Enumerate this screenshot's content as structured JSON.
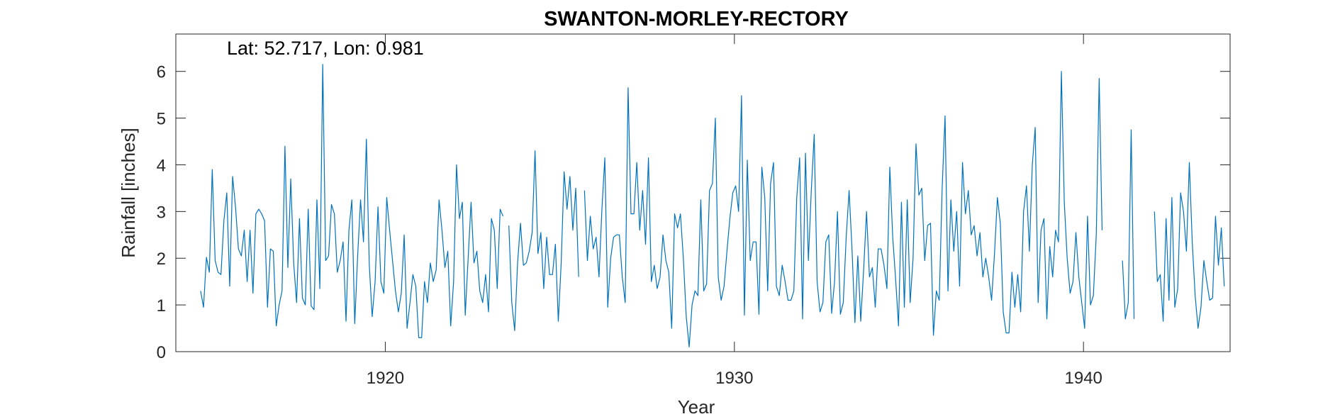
{
  "chart_data": {
    "type": "line",
    "title": "SWANTON-MORLEY-RECTORY",
    "annotation": "Lat: 52.717, Lon: 0.981",
    "xlabel": "Year",
    "ylabel": "Rainfall [inches]",
    "xlim": [
      1914,
      1944.2
    ],
    "ylim": [
      0,
      6.8
    ],
    "xticks": [
      1920,
      1930,
      1940
    ],
    "yticks": [
      0,
      1,
      2,
      3,
      4,
      5,
      6
    ],
    "grid": false,
    "line_color": "#0072BD",
    "series": [
      {
        "start_year": 1914.71,
        "step_years": 0.0833,
        "values": [
          1.3,
          0.95,
          2.02,
          1.7,
          3.9,
          1.95,
          1.7,
          1.65,
          2.8,
          3.4,
          1.4,
          3.75,
          3.1,
          2.2,
          2.05,
          2.6,
          1.5,
          2.6,
          1.25,
          2.95,
          3.05,
          2.95,
          2.8,
          0.95,
          2.2,
          2.15,
          0.55,
          1.0,
          1.3,
          4.4,
          1.8,
          3.7,
          1.9,
          1.05,
          2.85,
          1.15,
          1.0,
          3.05,
          0.98,
          0.9,
          3.25,
          1.35,
          6.15,
          1.95,
          2.05,
          3.15,
          2.95,
          1.7,
          1.95,
          2.35,
          0.65,
          2.6,
          3.25,
          0.6,
          2.05,
          3.25,
          2.35,
          4.55,
          1.85,
          0.75,
          1.5,
          3.1,
          1.5,
          1.25,
          3.3,
          2.6,
          1.95,
          1.3,
          0.85,
          1.25,
          2.5,
          0.5,
          1.05,
          1.65,
          1.4,
          0.3,
          0.3,
          1.5,
          1.05,
          1.9,
          1.5,
          1.75,
          3.25,
          2.6,
          1.8,
          2.15,
          0.55,
          1.5,
          4.0,
          2.85,
          3.2,
          0.78,
          2.0,
          3.2,
          1.9,
          2.15,
          1.3,
          1.05,
          1.65,
          0.85,
          2.85,
          2.6,
          1.35,
          3.05,
          2.9,
          null,
          2.7,
          1.05,
          0.45,
          1.9,
          2.75,
          1.85,
          1.9,
          2.15,
          2.55,
          4.3,
          2.1,
          2.55,
          1.35,
          2.45,
          1.65,
          1.65,
          2.3,
          0.65,
          1.9,
          3.85,
          3.05,
          3.75,
          2.6,
          3.5,
          1.6,
          null,
          3.45,
          1.95,
          2.9,
          2.2,
          2.45,
          1.6,
          3.05,
          4.15,
          0.95,
          2.0,
          2.45,
          2.5,
          2.5,
          1.6,
          1.05,
          5.65,
          2.95,
          2.95,
          4.05,
          2.6,
          3.45,
          2.3,
          4.15,
          1.5,
          1.85,
          1.35,
          1.6,
          2.5,
          1.95,
          1.7,
          0.5,
          2.95,
          2.65,
          2.95,
          2.0,
          0.75,
          0.1,
          1.0,
          1.3,
          1.2,
          3.25,
          1.3,
          1.45,
          3.45,
          3.6,
          5.0,
          1.6,
          1.1,
          1.4,
          2.15,
          2.85,
          3.4,
          3.55,
          3.0,
          5.48,
          0.78,
          4.1,
          1.95,
          2.35,
          2.35,
          0.8,
          3.95,
          3.3,
          1.3,
          3.6,
          4.05,
          1.4,
          1.2,
          1.85,
          1.5,
          1.1,
          1.1,
          1.3,
          3.3,
          4.15,
          0.7,
          4.25,
          1.95,
          3.45,
          4.65,
          1.5,
          0.85,
          1.05,
          2.35,
          2.5,
          0.82,
          1.5,
          3.0,
          0.8,
          1.05,
          2.45,
          3.45,
          2.2,
          0.62,
          2.05,
          0.65,
          1.75,
          3.0,
          1.6,
          1.8,
          0.95,
          2.2,
          2.2,
          1.85,
          1.35,
          3.95,
          2.45,
          1.55,
          0.55,
          3.2,
          0.95,
          3.25,
          1.05,
          2.0,
          4.45,
          3.35,
          3.5,
          1.95,
          2.7,
          2.75,
          0.35,
          1.3,
          1.1,
          3.5,
          5.05,
          1.3,
          3.25,
          2.15,
          3.0,
          1.4,
          4.05,
          2.95,
          3.45,
          2.5,
          2.7,
          2.05,
          2.55,
          1.6,
          2.0,
          1.6,
          1.1,
          2.1,
          3.3,
          2.75,
          0.85,
          0.4,
          0.4,
          1.7,
          0.95,
          1.65,
          0.85,
          3.0,
          3.55,
          2.15,
          4.0,
          4.8,
          1.05,
          2.6,
          2.85,
          0.7,
          2.25,
          1.6,
          2.6,
          2.35,
          6.0,
          3.2,
          2.0,
          1.25,
          1.5,
          2.55,
          1.6,
          1.05,
          0.5,
          2.9,
          1.0,
          1.2,
          2.5,
          5.85,
          2.6,
          null,
          null,
          null,
          null,
          null,
          null,
          1.95,
          0.7,
          1.05,
          4.75,
          0.7,
          null,
          null,
          null,
          null,
          null,
          null,
          3.0,
          1.5,
          1.65,
          0.65,
          2.85,
          1.1,
          3.3,
          0.95,
          1.35,
          3.4,
          3.0,
          2.15,
          4.05,
          2.35,
          1.2,
          0.5,
          0.95,
          1.95,
          1.5,
          1.1,
          1.15,
          2.9,
          1.85,
          2.65,
          1.4
        ]
      }
    ]
  }
}
